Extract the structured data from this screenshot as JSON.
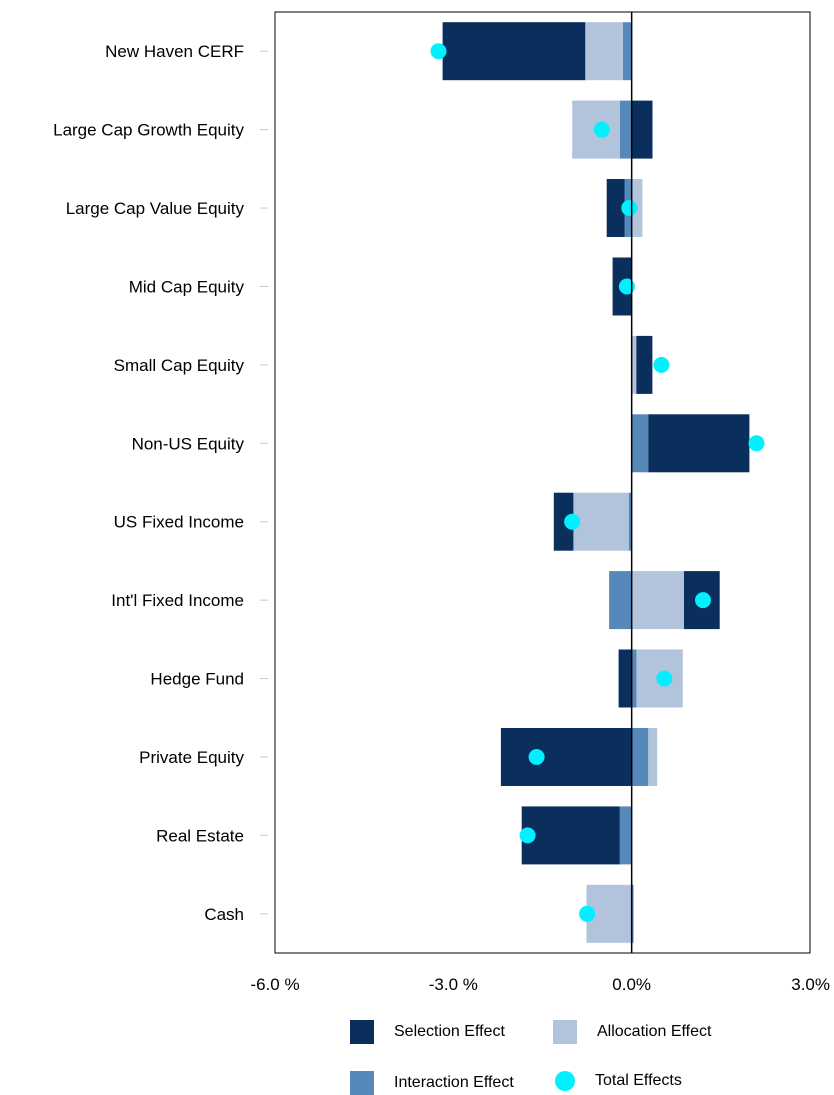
{
  "chart_data": {
    "type": "bar",
    "orientation": "horizontal",
    "stacked": "diverging",
    "categories": [
      "New Haven CERF",
      "Large Cap Growth Equity",
      "Large Cap Value Equity",
      "Mid Cap Equity",
      "Small Cap Equity",
      "Non-US Equity",
      "US Fixed Income",
      "Int'l Fixed Income",
      "Hedge Fund",
      "Private Equity",
      "Real Estate",
      "Cash"
    ],
    "series": [
      {
        "name": "Selection Effect",
        "kind": "bar",
        "color": "#0a2f5c",
        "values": [
          -2.4,
          0.35,
          -0.3,
          -0.32,
          0.27,
          1.7,
          -0.33,
          0.6,
          -0.22,
          -2.2,
          -1.65,
          0.0
        ]
      },
      {
        "name": "Allocation Effect",
        "kind": "bar",
        "color": "#b2c3dc",
        "values": [
          -0.63,
          -0.8,
          0.18,
          0.0,
          0.08,
          0.0,
          -0.93,
          0.88,
          0.78,
          0.15,
          0.0,
          -0.76
        ]
      },
      {
        "name": "Interaction Effect",
        "kind": "bar",
        "color": "#5788ba",
        "values": [
          -0.15,
          -0.2,
          -0.12,
          0.0,
          0.0,
          0.28,
          -0.05,
          -0.38,
          0.08,
          0.28,
          -0.2,
          0.03
        ]
      },
      {
        "name": "Total Effects",
        "kind": "point",
        "color": "#00f0ff",
        "values": [
          -3.25,
          -0.5,
          -0.04,
          -0.08,
          0.5,
          2.1,
          -1.0,
          1.2,
          0.55,
          -1.6,
          -1.75,
          -0.75
        ]
      }
    ],
    "xlim": [
      -6.0,
      3.0
    ],
    "x_ticks": [
      {
        "value": -6.0,
        "label": "-6.0 %"
      },
      {
        "value": -3.0,
        "label": "-3.0 %"
      },
      {
        "value": 0.0,
        "label": "0.0%"
      },
      {
        "value": 3.0,
        "label": "3.0%"
      }
    ],
    "grid": false,
    "legend_position": "bottom",
    "title": "",
    "xlabel": "",
    "ylabel": ""
  },
  "legend": [
    {
      "name": "Selection Effect",
      "shape": "square",
      "color": "#0a2f5c"
    },
    {
      "name": "Allocation Effect",
      "shape": "square",
      "color": "#b2c3dc"
    },
    {
      "name": "Interaction Effect",
      "shape": "square",
      "color": "#5788ba"
    },
    {
      "name": "Total Effects",
      "shape": "circle",
      "color": "#00f0ff"
    }
  ]
}
